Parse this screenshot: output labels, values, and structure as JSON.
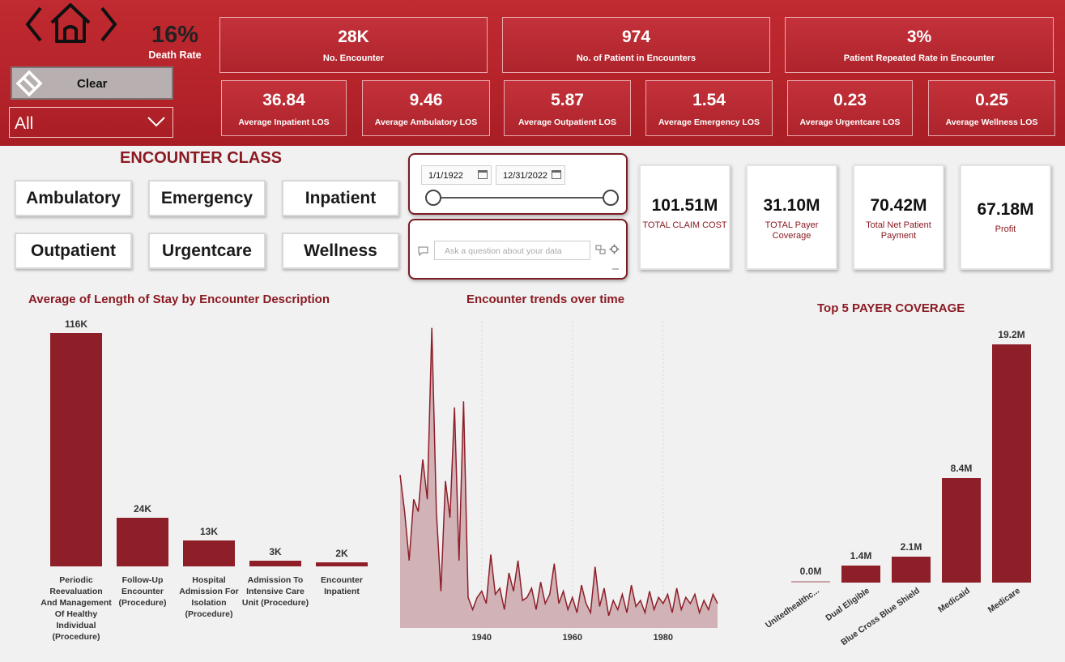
{
  "header": {
    "death_rate": {
      "value": "16%",
      "label": "Death Rate"
    },
    "clear_label": "Clear",
    "filter_value": "All",
    "kpis_top": [
      {
        "value": "28K",
        "label": "No. Encounter"
      },
      {
        "value": "974",
        "label": "No. of Patient in Encounters"
      },
      {
        "value": "3%",
        "label": "Patient Repeated Rate in Encounter"
      }
    ],
    "kpis_los": [
      {
        "value": "36.84",
        "label": "Average Inpatient LOS"
      },
      {
        "value": "9.46",
        "label": "Average Ambulatory LOS"
      },
      {
        "value": "5.87",
        "label": "Average Outpatient LOS"
      },
      {
        "value": "1.54",
        "label": "Average Emergency LOS"
      },
      {
        "value": "0.23",
        "label": "Average Urgentcare LOS"
      },
      {
        "value": "0.25",
        "label": "Average Wellness LOS"
      }
    ]
  },
  "encounter_class": {
    "title": "ENCOUNTER CLASS",
    "buttons": [
      "Ambulatory",
      "Emergency",
      "Inpatient",
      "Outpatient",
      "Urgentcare",
      "Wellness"
    ]
  },
  "date_filter": {
    "start": "1/1/1922",
    "end": "12/31/2022"
  },
  "qa": {
    "placeholder": "Ask a question about your data"
  },
  "cards": [
    {
      "value": "101.51M",
      "label": "TOTAL CLAIM COST"
    },
    {
      "value": "31.10M",
      "label": "TOTAL Payer Coverage"
    },
    {
      "value": "70.42M",
      "label": "Total Net Patient Payment"
    },
    {
      "value": "67.18M",
      "label": "Profit"
    }
  ],
  "colors": {
    "accent": "#8b1a22",
    "header": "#b5232a",
    "bar": "#8e1e28",
    "area": "#c9a3a7"
  },
  "chart_data": [
    {
      "type": "bar",
      "title": "Average of Length of Stay by Encounter Description",
      "categories": [
        "Periodic Reevaluation And Management Of Healthy Individual (Procedure)",
        "Follow-Up Encounter (Procedure)",
        "Hospital Admission For Isolation (Procedure)",
        "Admission To Intensive Care Unit (Procedure)",
        "Encounter Inpatient"
      ],
      "values": [
        116000,
        24000,
        13000,
        3000,
        2000
      ],
      "data_labels": [
        "116K",
        "24K",
        "13K",
        "3K",
        "2K"
      ]
    },
    {
      "type": "area",
      "title": "Encounter trends over time",
      "x_ticks": [
        "1940",
        "1960",
        "1980"
      ],
      "x_range": [
        1922,
        1992
      ],
      "y_range": [
        0,
        100
      ],
      "series": [
        {
          "values": [
            [
              1922,
              50
            ],
            [
              1923,
              38
            ],
            [
              1924,
              22
            ],
            [
              1925,
              42
            ],
            [
              1926,
              38
            ],
            [
              1927,
              55
            ],
            [
              1928,
              42
            ],
            [
              1929,
              98
            ],
            [
              1930,
              38
            ],
            [
              1931,
              12
            ],
            [
              1932,
              48
            ],
            [
              1933,
              36
            ],
            [
              1934,
              72
            ],
            [
              1935,
              22
            ],
            [
              1936,
              74
            ],
            [
              1937,
              10
            ],
            [
              1938,
              6
            ],
            [
              1939,
              10
            ],
            [
              1940,
              12
            ],
            [
              1941,
              8
            ],
            [
              1942,
              24
            ],
            [
              1943,
              11
            ],
            [
              1944,
              13
            ],
            [
              1945,
              6
            ],
            [
              1946,
              18
            ],
            [
              1947,
              12
            ],
            [
              1948,
              22
            ],
            [
              1949,
              9
            ],
            [
              1950,
              10
            ],
            [
              1951,
              13
            ],
            [
              1952,
              6
            ],
            [
              1953,
              15
            ],
            [
              1954,
              8
            ],
            [
              1955,
              11
            ],
            [
              1956,
              21
            ],
            [
              1957,
              8
            ],
            [
              1958,
              12
            ],
            [
              1959,
              6
            ],
            [
              1960,
              10
            ],
            [
              1961,
              5
            ],
            [
              1962,
              14
            ],
            [
              1963,
              8
            ],
            [
              1964,
              5
            ],
            [
              1965,
              20
            ],
            [
              1966,
              7
            ],
            [
              1967,
              13
            ],
            [
              1968,
              4
            ],
            [
              1969,
              9
            ],
            [
              1970,
              6
            ],
            [
              1971,
              11
            ],
            [
              1972,
              5
            ],
            [
              1973,
              14
            ],
            [
              1974,
              7
            ],
            [
              1975,
              9
            ],
            [
              1976,
              5
            ],
            [
              1977,
              12
            ],
            [
              1978,
              6
            ],
            [
              1979,
              10
            ],
            [
              1980,
              8
            ],
            [
              1981,
              11
            ],
            [
              1982,
              5
            ],
            [
              1983,
              13
            ],
            [
              1984,
              6
            ],
            [
              1985,
              10
            ],
            [
              1986,
              8
            ],
            [
              1987,
              11
            ],
            [
              1988,
              5
            ],
            [
              1989,
              9
            ],
            [
              1990,
              6
            ],
            [
              1991,
              11
            ],
            [
              1992,
              8
            ]
          ]
        }
      ]
    },
    {
      "type": "bar",
      "title": "Top 5 PAYER COVERAGE",
      "categories": [
        "Unitedhealthc...",
        "Dual Eligible",
        "Blue Cross Blue Shield",
        "Medicaid",
        "Medicare"
      ],
      "values": [
        0.0,
        1.4,
        2.1,
        8.4,
        19.2
      ],
      "data_labels": [
        "0.0M",
        "1.4M",
        "2.1M",
        "8.4M",
        "19.2M"
      ]
    }
  ]
}
